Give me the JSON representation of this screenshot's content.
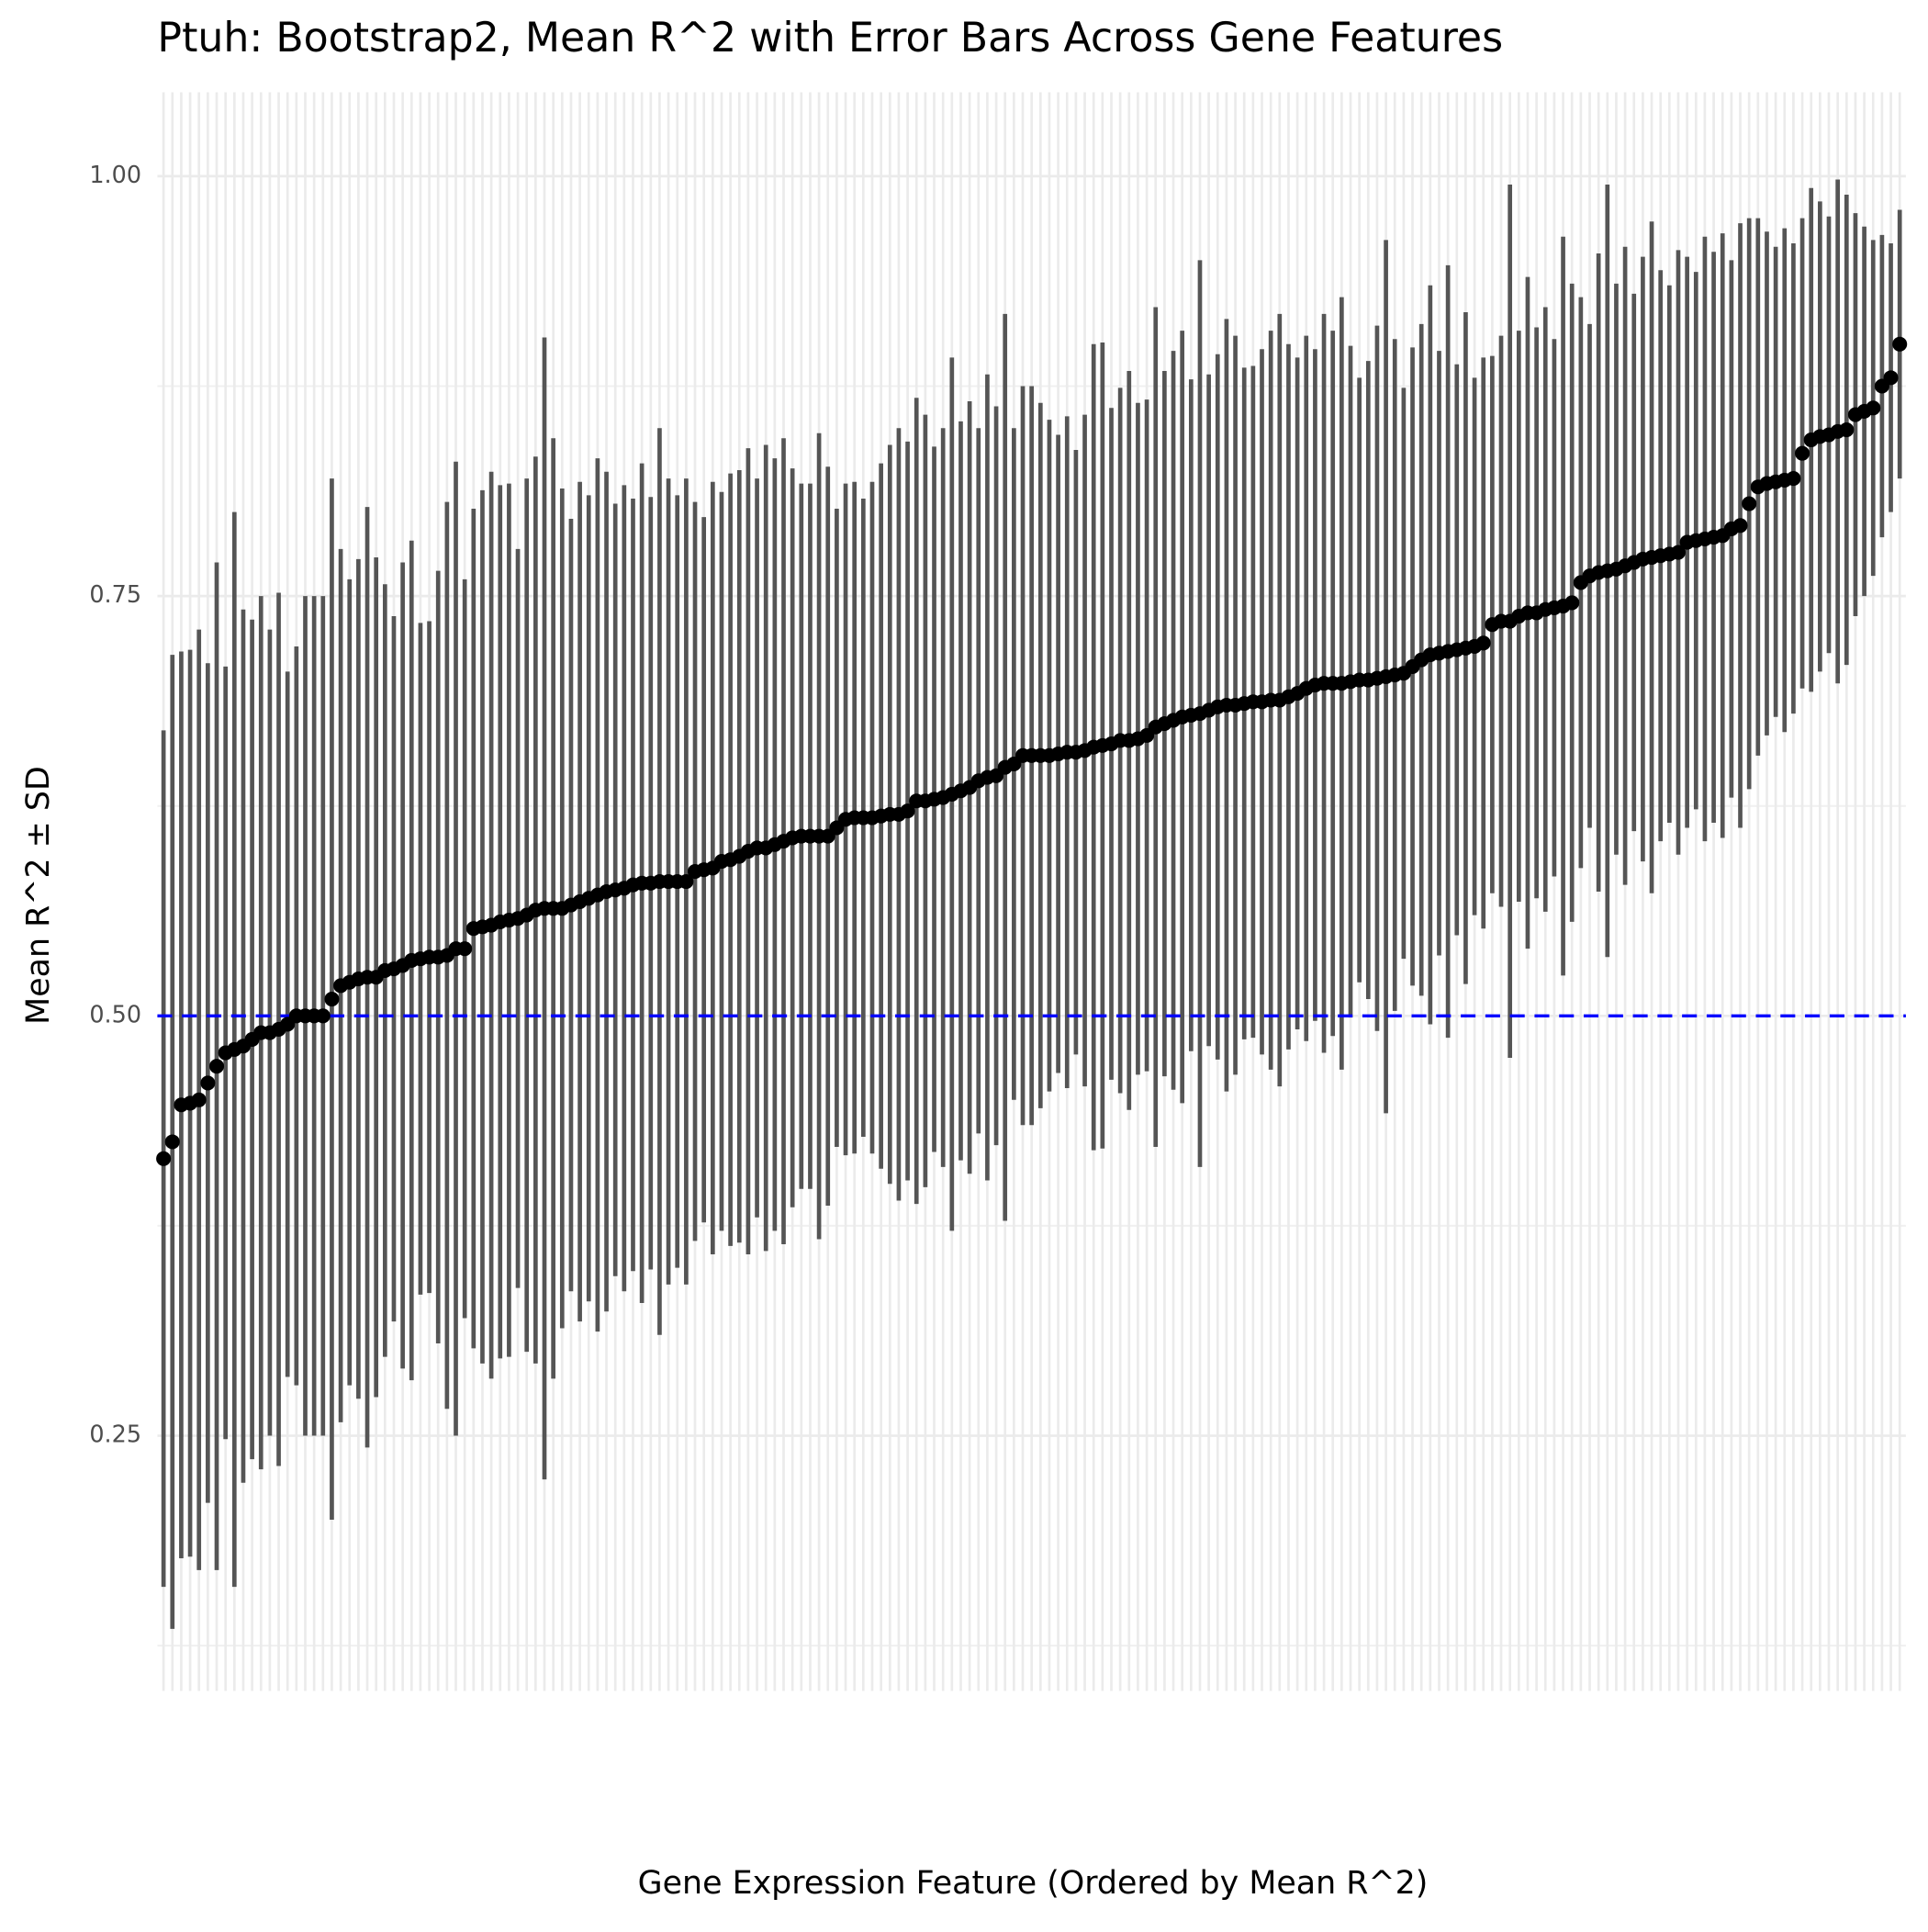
{
  "chart_data": {
    "type": "errorbar",
    "title": "Ptuh: Bootstrap2, Mean R^2 with Error Bars Across Gene Features",
    "x_label": "Gene Expression Feature (Ordered by Mean R^2)",
    "y_label": "Mean R^2 ± SD",
    "categories": [
      null,
      null,
      null,
      null,
      null,
      null,
      null,
      null,
      null,
      null,
      null,
      null,
      null,
      null,
      null,
      null,
      null,
      null,
      null,
      null,
      null,
      null,
      null,
      null,
      null,
      null,
      null,
      null,
      null,
      null,
      null,
      null,
      null,
      null,
      null,
      null,
      null,
      null,
      null,
      null,
      null,
      null,
      null,
      null,
      null,
      null,
      null,
      null,
      null,
      null,
      null,
      null,
      null,
      null,
      null,
      null,
      null,
      null,
      null,
      null,
      null,
      null,
      null,
      null,
      null,
      null,
      null,
      null,
      null,
      null,
      null,
      null,
      null,
      null,
      null,
      null,
      null,
      null,
      null,
      null,
      null,
      null,
      null,
      null,
      null,
      null,
      null,
      null,
      null,
      null,
      null,
      null,
      null,
      null,
      null,
      null,
      null,
      null,
      null,
      null,
      null,
      null,
      null,
      null,
      null,
      null,
      null,
      null,
      null,
      null,
      null,
      null,
      null,
      null,
      null,
      null,
      null,
      null,
      null,
      null,
      null,
      null,
      null,
      null,
      null,
      null,
      null,
      null,
      null,
      null,
      null,
      null,
      null,
      null,
      null,
      null,
      null,
      null,
      null,
      null,
      null,
      null,
      null,
      null,
      null,
      null,
      null,
      null,
      null,
      null,
      null,
      null,
      null,
      null,
      null,
      null,
      null,
      null,
      null,
      null,
      null,
      null,
      null,
      null,
      null,
      null,
      null,
      null,
      null,
      null,
      null,
      null,
      null,
      null,
      null,
      null,
      null,
      null,
      null,
      null,
      null,
      null,
      null,
      null,
      null,
      null,
      null,
      null,
      null,
      null,
      null,
      null,
      null,
      null,
      null,
      null,
      null
    ],
    "values": [
      0.415,
      0.425,
      0.447,
      0.448,
      0.45,
      0.46,
      0.47,
      0.478,
      0.48,
      0.482,
      0.486,
      0.49,
      0.49,
      0.492,
      0.495,
      0.5,
      0.5,
      0.5,
      0.5,
      0.51,
      0.518,
      0.52,
      0.522,
      0.523,
      0.523,
      0.527,
      0.528,
      0.53,
      0.533,
      0.534,
      0.535,
      0.535,
      0.536,
      0.54,
      0.54,
      0.552,
      0.553,
      0.554,
      0.556,
      0.557,
      0.558,
      0.56,
      0.563,
      0.564,
      0.564,
      0.564,
      0.566,
      0.568,
      0.57,
      0.572,
      0.574,
      0.575,
      0.576,
      0.578,
      0.579,
      0.579,
      0.58,
      0.58,
      0.58,
      0.58,
      0.586,
      0.587,
      0.588,
      0.592,
      0.593,
      0.595,
      0.598,
      0.6,
      0.6,
      0.602,
      0.604,
      0.606,
      0.607,
      0.607,
      0.607,
      0.607,
      0.612,
      0.617,
      0.618,
      0.618,
      0.618,
      0.619,
      0.62,
      0.62,
      0.622,
      0.628,
      0.628,
      0.629,
      0.63,
      0.632,
      0.634,
      0.636,
      0.64,
      0.642,
      0.643,
      0.648,
      0.65,
      0.655,
      0.655,
      0.655,
      0.655,
      0.656,
      0.657,
      0.657,
      0.658,
      0.66,
      0.661,
      0.662,
      0.664,
      0.664,
      0.665,
      0.667,
      0.672,
      0.674,
      0.676,
      0.678,
      0.679,
      0.68,
      0.682,
      0.684,
      0.685,
      0.685,
      0.686,
      0.687,
      0.687,
      0.688,
      0.688,
      0.69,
      0.692,
      0.695,
      0.697,
      0.698,
      0.698,
      0.698,
      0.699,
      0.7,
      0.7,
      0.701,
      0.702,
      0.703,
      0.704,
      0.708,
      0.712,
      0.715,
      0.716,
      0.717,
      0.718,
      0.719,
      0.72,
      0.722,
      0.733,
      0.735,
      0.735,
      0.738,
      0.74,
      0.74,
      0.742,
      0.743,
      0.744,
      0.746,
      0.758,
      0.762,
      0.764,
      0.765,
      0.766,
      0.768,
      0.77,
      0.772,
      0.773,
      0.774,
      0.775,
      0.776,
      0.782,
      0.783,
      0.784,
      0.785,
      0.786,
      0.79,
      0.792,
      0.805,
      0.815,
      0.817,
      0.818,
      0.819,
      0.82,
      0.835,
      0.843,
      0.845,
      0.846,
      0.848,
      0.849,
      0.858,
      0.86,
      0.862,
      0.875,
      0.88,
      0.9
    ],
    "errors": [
      0.255,
      0.29,
      0.27,
      0.27,
      0.28,
      0.25,
      0.3,
      0.23,
      0.32,
      0.26,
      0.25,
      0.26,
      0.24,
      0.26,
      0.21,
      0.22,
      0.25,
      0.25,
      0.25,
      0.31,
      0.26,
      0.24,
      0.25,
      0.28,
      0.25,
      0.23,
      0.21,
      0.24,
      0.25,
      0.2,
      0.2,
      0.23,
      0.27,
      0.29,
      0.22,
      0.25,
      0.26,
      0.27,
      0.26,
      0.26,
      0.22,
      0.26,
      0.27,
      0.34,
      0.28,
      0.25,
      0.23,
      0.25,
      0.24,
      0.26,
      0.25,
      0.23,
      0.24,
      0.23,
      0.25,
      0.23,
      0.27,
      0.24,
      0.23,
      0.24,
      0.22,
      0.21,
      0.23,
      0.22,
      0.23,
      0.23,
      0.24,
      0.22,
      0.24,
      0.23,
      0.24,
      0.22,
      0.21,
      0.21,
      0.24,
      0.22,
      0.19,
      0.2,
      0.2,
      0.19,
      0.2,
      0.21,
      0.22,
      0.23,
      0.22,
      0.24,
      0.23,
      0.21,
      0.22,
      0.26,
      0.22,
      0.23,
      0.21,
      0.24,
      0.22,
      0.27,
      0.2,
      0.22,
      0.22,
      0.21,
      0.2,
      0.19,
      0.2,
      0.18,
      0.2,
      0.24,
      0.24,
      0.2,
      0.21,
      0.22,
      0.2,
      0.2,
      0.25,
      0.21,
      0.22,
      0.23,
      0.2,
      0.27,
      0.2,
      0.21,
      0.23,
      0.22,
      0.2,
      0.2,
      0.21,
      0.22,
      0.23,
      0.21,
      0.2,
      0.21,
      0.2,
      0.22,
      0.21,
      0.23,
      0.2,
      0.18,
      0.19,
      0.21,
      0.26,
      0.2,
      0.17,
      0.19,
      0.2,
      0.22,
      0.18,
      0.23,
      0.17,
      0.2,
      0.16,
      0.17,
      0.16,
      0.17,
      0.26,
      0.17,
      0.2,
      0.17,
      0.18,
      0.16,
      0.22,
      0.19,
      0.17,
      0.15,
      0.19,
      0.23,
      0.17,
      0.19,
      0.16,
      0.18,
      0.2,
      0.17,
      0.16,
      0.18,
      0.17,
      0.16,
      0.18,
      0.17,
      0.18,
      0.16,
      0.18,
      0.17,
      0.16,
      0.15,
      0.14,
      0.15,
      0.14,
      0.14,
      0.15,
      0.14,
      0.13,
      0.15,
      0.14,
      0.12,
      0.11,
      0.1,
      0.09,
      0.08,
      0.08
    ],
    "color": "#000000",
    "error_color": "#555555",
    "ylim": [
      0.098,
      1.05
    ],
    "yticks": [
      {
        "value": 0.25,
        "label": "0.25"
      },
      {
        "value": 0.5,
        "label": "0.50"
      },
      {
        "value": 0.75,
        "label": "0.75"
      },
      {
        "value": 1.0,
        "label": "1.00"
      }
    ],
    "y_minor_ticks": [
      0.125,
      0.375,
      0.625,
      0.875
    ],
    "hline": {
      "value": 0.5,
      "color": "#0000ff"
    },
    "grid": true
  }
}
